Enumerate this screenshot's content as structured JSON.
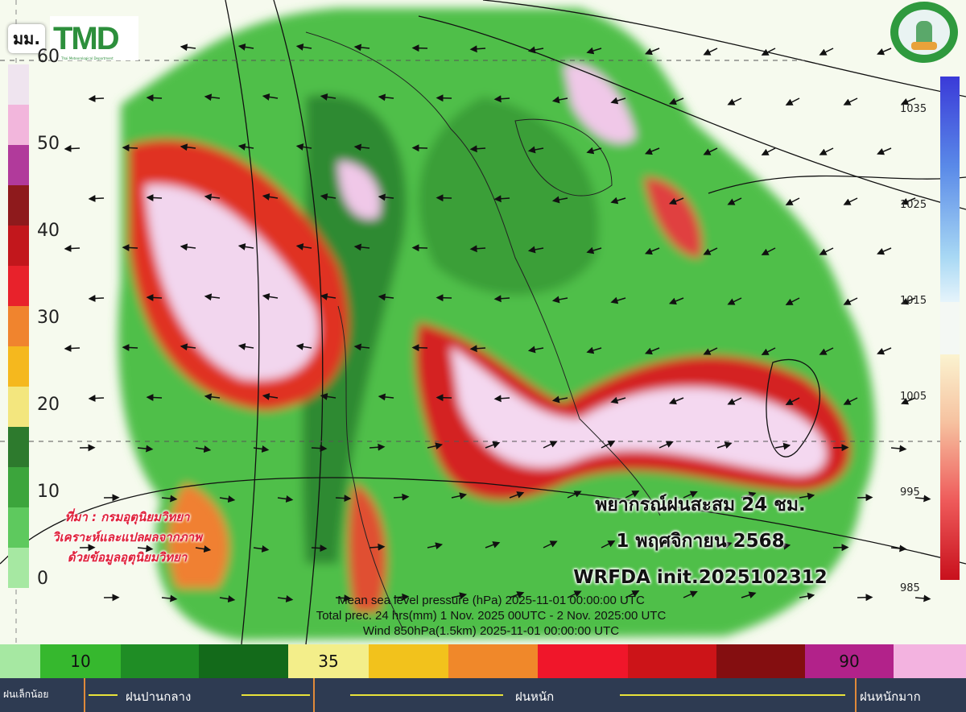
{
  "header": {
    "unit_label": "มม.",
    "logo_text": "TMD",
    "logo_subtitle": "Thai Meteorological Department",
    "seal_text": "กรมอุตุนิยมวิทยา METEOROLOGICAL DEPARTMENT"
  },
  "rain_scale": {
    "ticks": [
      "60",
      "50",
      "40",
      "30",
      "20",
      "10",
      "0"
    ],
    "colors": [
      "#efe4ef",
      "#f2b6dc",
      "#b13a9b",
      "#8e1a1c",
      "#c2171c",
      "#e8222b",
      "#f0842e",
      "#f5b81e",
      "#f3e67e",
      "#2d7a2d",
      "#3ca53c",
      "#5ec95e",
      "#a6e8a2"
    ]
  },
  "pressure_scale": {
    "ticks": [
      "1035",
      "1025",
      "1015",
      "1005",
      "995",
      "985"
    ]
  },
  "source": {
    "line1": "ที่มา : กรมอุตุนิยมวิทยา",
    "line2": "วิเคราะห์และแปลผลจากภาพ",
    "line3": "ด้วยข้อมูลอุตุนิยมวิทยา"
  },
  "title": {
    "line1": "พยากรณ์ฝนสะสม 24 ชม.",
    "line2": "1 พฤศจิกายน 2568",
    "line3": "WRFDA init.2025102312"
  },
  "meta": {
    "line1": "Mean sea level pressure (hPa) 2025-11-01 00:00:00 UTC",
    "line2": "Total prec. 24 hrs(mm) 1 Nov. 2025 00UTC - 2 Nov.  2025:00 UTC",
    "line3": "Wind 850hPa(1.5km)   2025-11-01 00:00:00 UTC"
  },
  "bottom_legend": {
    "segments": [
      {
        "color": "#a6e8a2",
        "label": ""
      },
      {
        "color": "#36b82e",
        "label": "10"
      },
      {
        "color": "#1f8d25",
        "label": ""
      },
      {
        "color": "#136a1a",
        "label": ""
      },
      {
        "color": "#f3ee8a",
        "label": "35"
      },
      {
        "color": "#f2c21c",
        "label": ""
      },
      {
        "color": "#f0882a",
        "label": ""
      },
      {
        "color": "#f0162a",
        "label": ""
      },
      {
        "color": "#cc1418",
        "label": ""
      },
      {
        "color": "#840e10",
        "label": ""
      },
      {
        "color": "#b2228a",
        "label": "90"
      },
      {
        "color": "#f3b3e0",
        "label": ""
      }
    ],
    "categories": [
      "ฝนเล็กน้อย",
      "ฝนปานกลาง",
      "ฝนหนัก",
      "ฝนหนักมาก"
    ]
  }
}
